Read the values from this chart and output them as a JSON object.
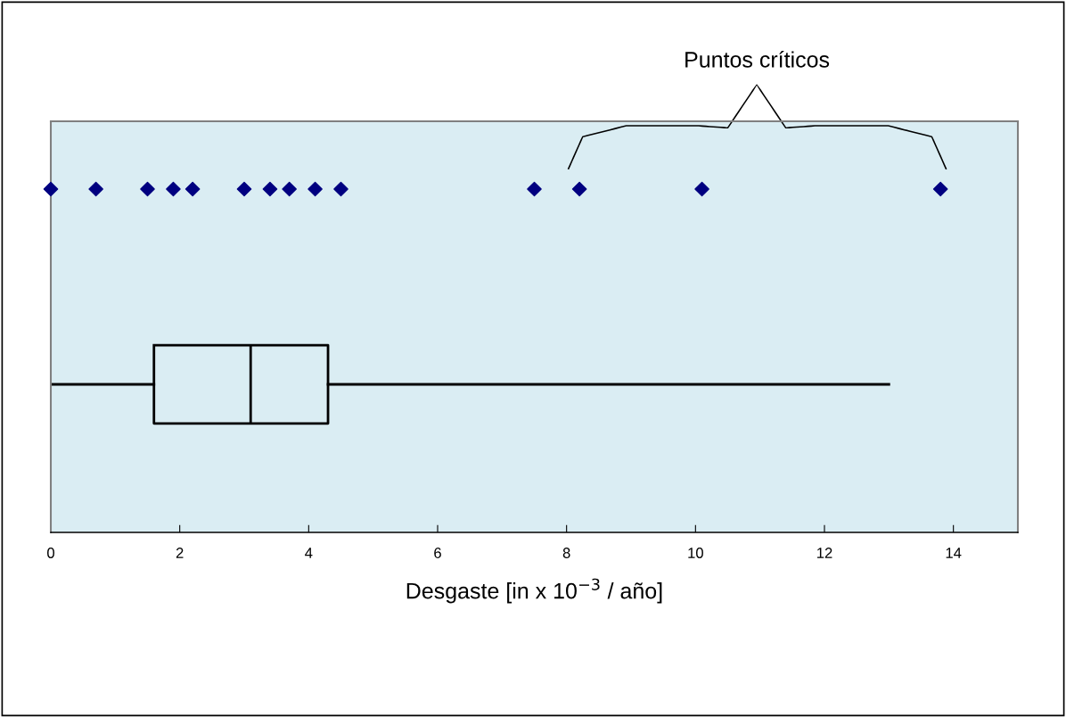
{
  "chart_data": {
    "type": "box",
    "orientation": "horizontal",
    "categories": [
      null,
      null
    ],
    "xlabel": "Desgaste [in x 10$^{−3}$ / año]",
    "xlim": [
      0,
      15
    ],
    "xticks": [
      0,
      2,
      4,
      6,
      8,
      10,
      12,
      14
    ],
    "tick_labels": "x",
    "grid": false,
    "legend": false,
    "boxes": [
      null,
      {
        "low": 0,
        "q1": 1.6,
        "median": 3.1,
        "q3": 4.3,
        "high": 13.0
      }
    ],
    "series": [
      {
        "type": "scatter",
        "color": "#000080",
        "marker": "diamond",
        "x": [
          null,
          null,
          null,
          null,
          null,
          null,
          null,
          null,
          null,
          null,
          null,
          null,
          null,
          null
        ],
        "values": [
          0,
          0.7,
          1.5,
          1.9,
          2.2,
          3.0,
          3.4,
          3.7,
          4.1,
          4.5,
          7.5,
          8.2,
          10.1,
          13.8
        ]
      }
    ],
    "annotations": [
      "Puntos críticos"
    ]
  }
}
